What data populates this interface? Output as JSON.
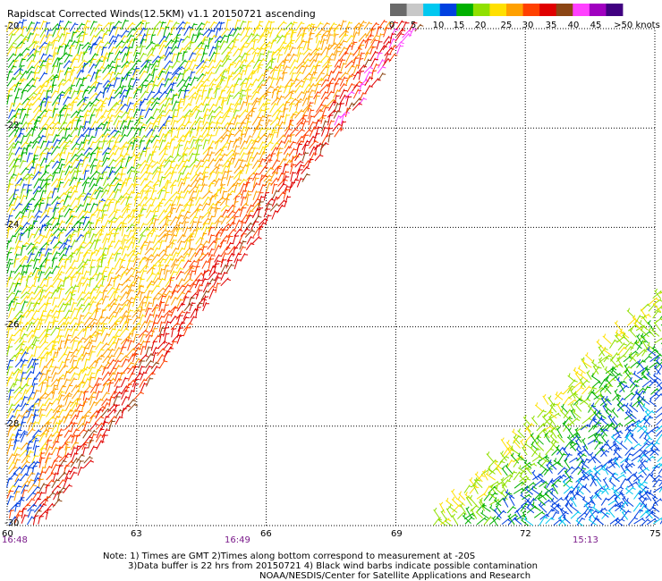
{
  "title": "Rapidscat Corrected Winds(12.5KM) v1.1 20150721 ascending",
  "color_scale": {
    "labels": [
      "0",
      "5",
      "10",
      "15",
      "20",
      "25",
      "30",
      "35",
      "40",
      "45",
      ">50 knots"
    ],
    "colors": [
      "#6a6a6a",
      "#c8c8c8",
      "#00c8f0",
      "#0040e0",
      "#00b000",
      "#90e000",
      "#ffe000",
      "#ffa000",
      "#ff4000",
      "#e00000",
      "#8b4513",
      "#ff40ff",
      "#a000c0",
      "#400080"
    ]
  },
  "axes": {
    "lon_labels": [
      "60",
      "63",
      "66",
      "69",
      "72",
      "75"
    ],
    "lat_labels": [
      "-20",
      "-22",
      "-24",
      "-26",
      "-28",
      "-30"
    ]
  },
  "swath_times": [
    "16:48",
    "16:49",
    "15:13"
  ],
  "notes": [
    "Note: 1) Times are GMT 2)Times along bottom correspond to measurement at -20S",
    "3)Data buffer is 22 hrs from 20150721 4) Black wind barbs indicate possible contamination",
    "NOAA/NESDIS/Center for Satellite Applications and Research"
  ]
}
